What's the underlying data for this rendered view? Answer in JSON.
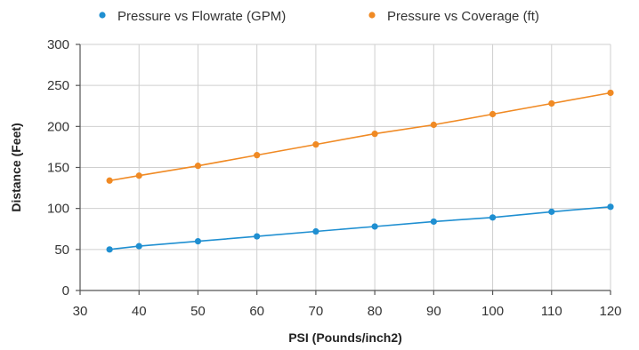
{
  "chart_data": {
    "type": "line",
    "title": "",
    "xlabel": "PSI (Pounds/inch2)",
    "ylabel": "Distance (Feet)",
    "xlim": [
      30,
      120
    ],
    "ylim": [
      0,
      300
    ],
    "x_ticks": [
      30,
      40,
      50,
      60,
      70,
      80,
      90,
      100,
      110,
      120
    ],
    "y_ticks": [
      0,
      50,
      100,
      150,
      200,
      250,
      300
    ],
    "grid": true,
    "legend_position": "top-center",
    "series": [
      {
        "name": "Pressure vs Flowrate (GPM)",
        "color": "#1f8fd1",
        "x": [
          35,
          40,
          50,
          60,
          70,
          80,
          90,
          100,
          110,
          120
        ],
        "y": [
          50,
          54,
          60,
          66,
          72,
          78,
          84,
          89,
          96,
          102
        ]
      },
      {
        "name": "Pressure vs Coverage (ft)",
        "color": "#f08a24",
        "x": [
          35,
          40,
          50,
          60,
          70,
          80,
          90,
          100,
          110,
          120
        ],
        "y": [
          134,
          140,
          152,
          165,
          178,
          191,
          202,
          215,
          228,
          241
        ]
      }
    ]
  }
}
